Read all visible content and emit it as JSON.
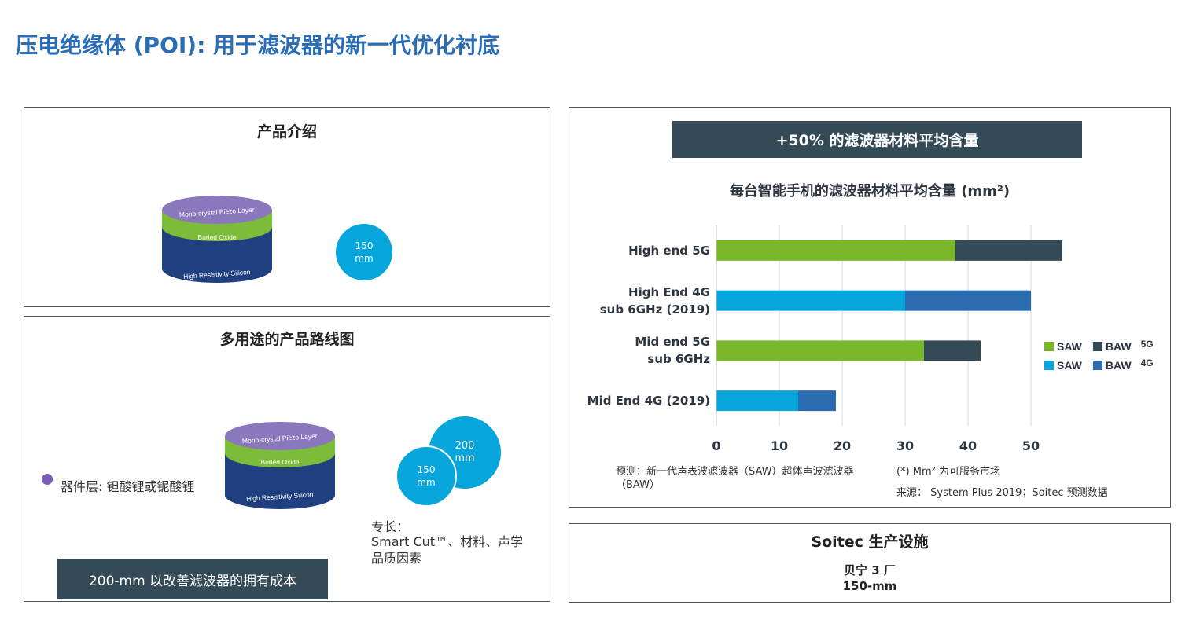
{
  "page_title": "压电绝缘体 (POI): 用于滤波器的新一代优化衬底",
  "product_intro": {
    "title": "产品介绍",
    "layers": [
      "Mono-crystal Piezo Layer",
      "Buried Oxide",
      "High Resistivity Silicon"
    ],
    "wafer_size": {
      "value": "150",
      "unit": "mm"
    }
  },
  "roadmap": {
    "title": "多用途的产品路线图",
    "layers": [
      "Mono-crystal Piezo Layer",
      "Buried Oxide",
      "High Resistivity Silicon"
    ],
    "device_layer": "器件层: 钽酸锂或铌酸锂",
    "wafer_large": {
      "value": "200",
      "unit": "mm"
    },
    "wafer_small": {
      "value": "150",
      "unit": "mm"
    },
    "expertise_label": "专长：",
    "expertise_text": "Smart Cut™、材料、声学品质因素",
    "banner": "200-mm 以改善滤波器的拥有成本"
  },
  "chart_panel": {
    "banner": "+50% 的滤波器材料平均含量",
    "forecast_note": "预测：新一代声表波滤波器（SAW）超体声波滤波器（BAW）",
    "footnote": "(*) Mm² 为可服务市场",
    "source": "来源： System Plus 2019；Soitec 预测数据"
  },
  "chart_data": {
    "type": "bar",
    "orientation": "horizontal",
    "stacked": true,
    "title": "每台智能手机的滤波器材料平均含量 (mm²)",
    "categories": [
      "High end 5G",
      "High End 4G sub 6GHz (2019)",
      "Mid end 5G sub 6GHz",
      "Mid End 4G (2019)"
    ],
    "category_lines": [
      [
        "High end 5G"
      ],
      [
        "High End 4G",
        "sub 6GHz (2019)"
      ],
      [
        "Mid end 5G",
        "sub 6GHz"
      ],
      [
        "Mid End 4G (2019)"
      ]
    ],
    "series": [
      {
        "name": "SAW",
        "group": "5G",
        "color": "#78b82a",
        "values": [
          38,
          null,
          33,
          null
        ]
      },
      {
        "name": "BAW",
        "group": "5G",
        "color": "#344a57",
        "values": [
          17,
          null,
          9,
          null
        ]
      },
      {
        "name": "SAW",
        "group": "4G",
        "color": "#06a6dd",
        "values": [
          null,
          30,
          null,
          13
        ]
      },
      {
        "name": "BAW",
        "group": "4G",
        "color": "#2b6cb0",
        "values": [
          null,
          20,
          null,
          6
        ]
      }
    ],
    "xticks": [
      "0",
      "10",
      "20",
      "30",
      "40",
      "50"
    ],
    "xlim": [
      0,
      50
    ],
    "grid": true,
    "legend_position": "right",
    "legend": {
      "row_5g": {
        "saw": "SAW",
        "baw": "BAW",
        "group": "5G"
      },
      "row_4g": {
        "saw": "SAW",
        "baw": "BAW",
        "group": "4G"
      }
    }
  },
  "facility": {
    "title": "Soitec 生产设施",
    "site": "贝宁 3 厂",
    "size": "150-mm"
  },
  "colors": {
    "title_blue": "#2a6cb6",
    "banner_dark": "#344a57",
    "saw_5g": "#78b82a",
    "baw_5g": "#344a57",
    "saw_4g": "#06a6dd",
    "baw_4g": "#2b6cb0",
    "wafer_purple": "#8a78bd",
    "wafer_green": "#7dbb3a",
    "wafer_navy": "#1f3f7e"
  }
}
